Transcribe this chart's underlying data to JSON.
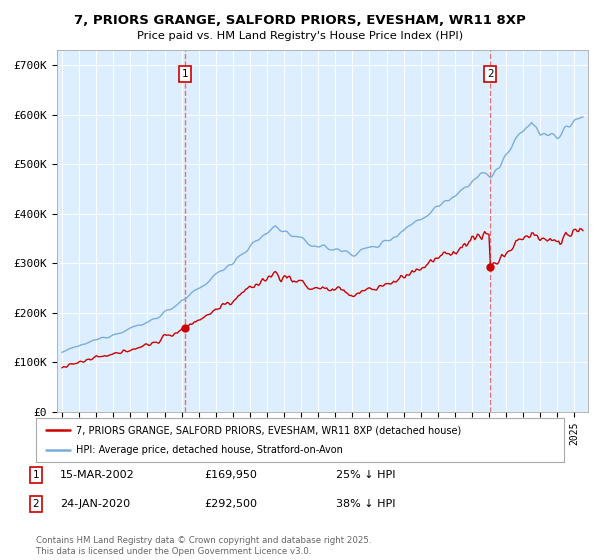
{
  "title": "7, PRIORS GRANGE, SALFORD PRIORS, EVESHAM, WR11 8XP",
  "subtitle": "Price paid vs. HM Land Registry's House Price Index (HPI)",
  "purchase1_date": "15-MAR-2002",
  "purchase1_price": 169950,
  "purchase1_pct": "25% ↓ HPI",
  "purchase2_date": "24-JAN-2020",
  "purchase2_price": 292500,
  "purchase2_pct": "38% ↓ HPI",
  "purchase1_x": 2002.21,
  "purchase2_x": 2020.07,
  "legend_line1": "7, PRIORS GRANGE, SALFORD PRIORS, EVESHAM, WR11 8XP (detached house)",
  "legend_line2": "HPI: Average price, detached house, Stratford-on-Avon",
  "footer": "Contains HM Land Registry data © Crown copyright and database right 2025.\nThis data is licensed under the Open Government Licence v3.0.",
  "property_color": "#cc0000",
  "hpi_color": "#7aaddd",
  "vline_color": "#e06060",
  "plot_bg_color": "#ddeeff",
  "bg_color": "#ffffff",
  "grid_color": "#ffffff",
  "ylim": [
    0,
    730000
  ],
  "xlim_start": 1994.7,
  "xlim_end": 2025.8
}
